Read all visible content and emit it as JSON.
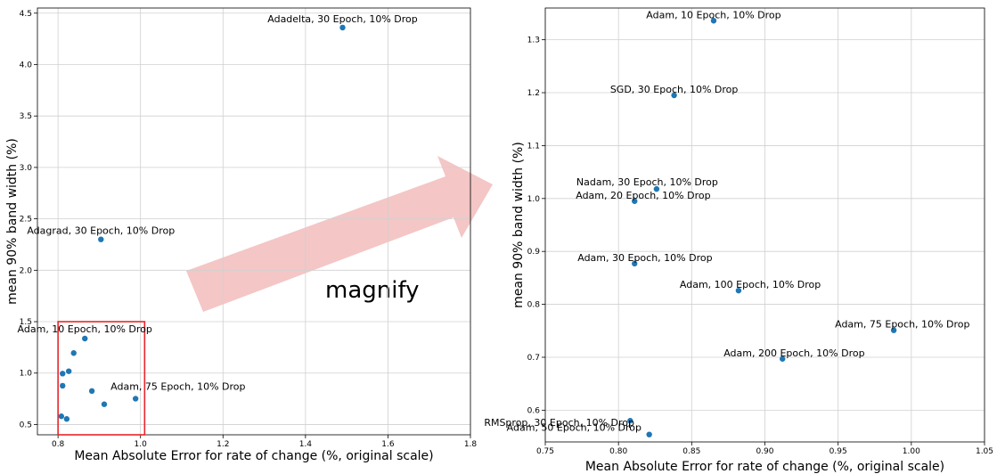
{
  "annotation": {
    "arrow_text": "magnify",
    "arrow_color": "#f4c6c6",
    "box_color": "#e8262a"
  },
  "chart_data": [
    {
      "type": "scatter",
      "xlabel": "Mean Absolute Error for rate of change (%, original scale)",
      "ylabel": "mean 90% band width (%)",
      "xlim": [
        0.75,
        1.8
      ],
      "ylim": [
        0.4,
        4.55
      ],
      "xticks": [
        "0.8",
        "1.0",
        "1.2",
        "1.4",
        "1.6",
        "1.8"
      ],
      "yticks": [
        "0.5",
        "1.0",
        "1.5",
        "2.0",
        "2.5",
        "3.0",
        "3.5",
        "4.0",
        "4.5"
      ],
      "grid": true,
      "marker_color": "#1f77b4",
      "magnify_box": {
        "x": [
          0.8,
          1.01
        ],
        "y": [
          0.4,
          1.5
        ]
      },
      "points": [
        {
          "x": 1.49,
          "y": 4.36,
          "label": "Adadelta, 30 Epoch, 10% Drop"
        },
        {
          "x": 0.904,
          "y": 2.3,
          "label": "Adagrad, 30 Epoch, 10% Drop"
        },
        {
          "x": 0.865,
          "y": 1.336,
          "label": "Adam, 10 Epoch, 10% Drop"
        },
        {
          "x": 0.838,
          "y": 1.195,
          "label": ""
        },
        {
          "x": 0.826,
          "y": 1.018,
          "label": ""
        },
        {
          "x": 0.811,
          "y": 0.995,
          "label": ""
        },
        {
          "x": 0.811,
          "y": 0.877,
          "label": ""
        },
        {
          "x": 0.882,
          "y": 0.826,
          "label": ""
        },
        {
          "x": 0.988,
          "y": 0.751,
          "label": "Adam, 75 Epoch, 10% Drop"
        },
        {
          "x": 0.912,
          "y": 0.697,
          "label": ""
        },
        {
          "x": 0.808,
          "y": 0.58,
          "label": ""
        },
        {
          "x": 0.821,
          "y": 0.554,
          "label": ""
        }
      ]
    },
    {
      "type": "scatter",
      "xlabel": "Mean Absolute Error for rate of change (%, original scale)",
      "ylabel": "mean 90% band width (%)",
      "xlim": [
        0.75,
        1.05
      ],
      "ylim": [
        0.54,
        1.36
      ],
      "xticks": [
        "0.75",
        "0.80",
        "0.85",
        "0.90",
        "0.95",
        "1.00",
        "1.05"
      ],
      "yticks": [
        "0.6",
        "0.7",
        "0.8",
        "0.9",
        "1.0",
        "1.1",
        "1.2",
        "1.3"
      ],
      "grid": true,
      "marker_color": "#1f77b4",
      "points": [
        {
          "x": 0.865,
          "y": 1.336,
          "label": "Adam, 10 Epoch, 10% Drop"
        },
        {
          "x": 0.838,
          "y": 1.195,
          "label": "SGD, 30 Epoch, 10% Drop"
        },
        {
          "x": 0.826,
          "y": 1.018,
          "label": "Nadam, 30 Epoch, 10% Drop"
        },
        {
          "x": 0.811,
          "y": 0.995,
          "label": "Adam, 20 Epoch, 10% Drop"
        },
        {
          "x": 0.811,
          "y": 0.877,
          "label": "Adam, 30 Epoch, 10% Drop"
        },
        {
          "x": 0.882,
          "y": 0.826,
          "label": "Adam, 100 Epoch, 10% Drop"
        },
        {
          "x": 0.988,
          "y": 0.751,
          "label": "Adam, 75 Epoch, 10% Drop"
        },
        {
          "x": 0.912,
          "y": 0.697,
          "label": "Adam, 200 Epoch, 10% Drop"
        },
        {
          "x": 0.808,
          "y": 0.58,
          "label": "RMSprop, 30 Epoch, 10% Drop"
        },
        {
          "x": 0.821,
          "y": 0.554,
          "label": "Adam, 50 Epoch, 10% Drop"
        }
      ]
    }
  ]
}
